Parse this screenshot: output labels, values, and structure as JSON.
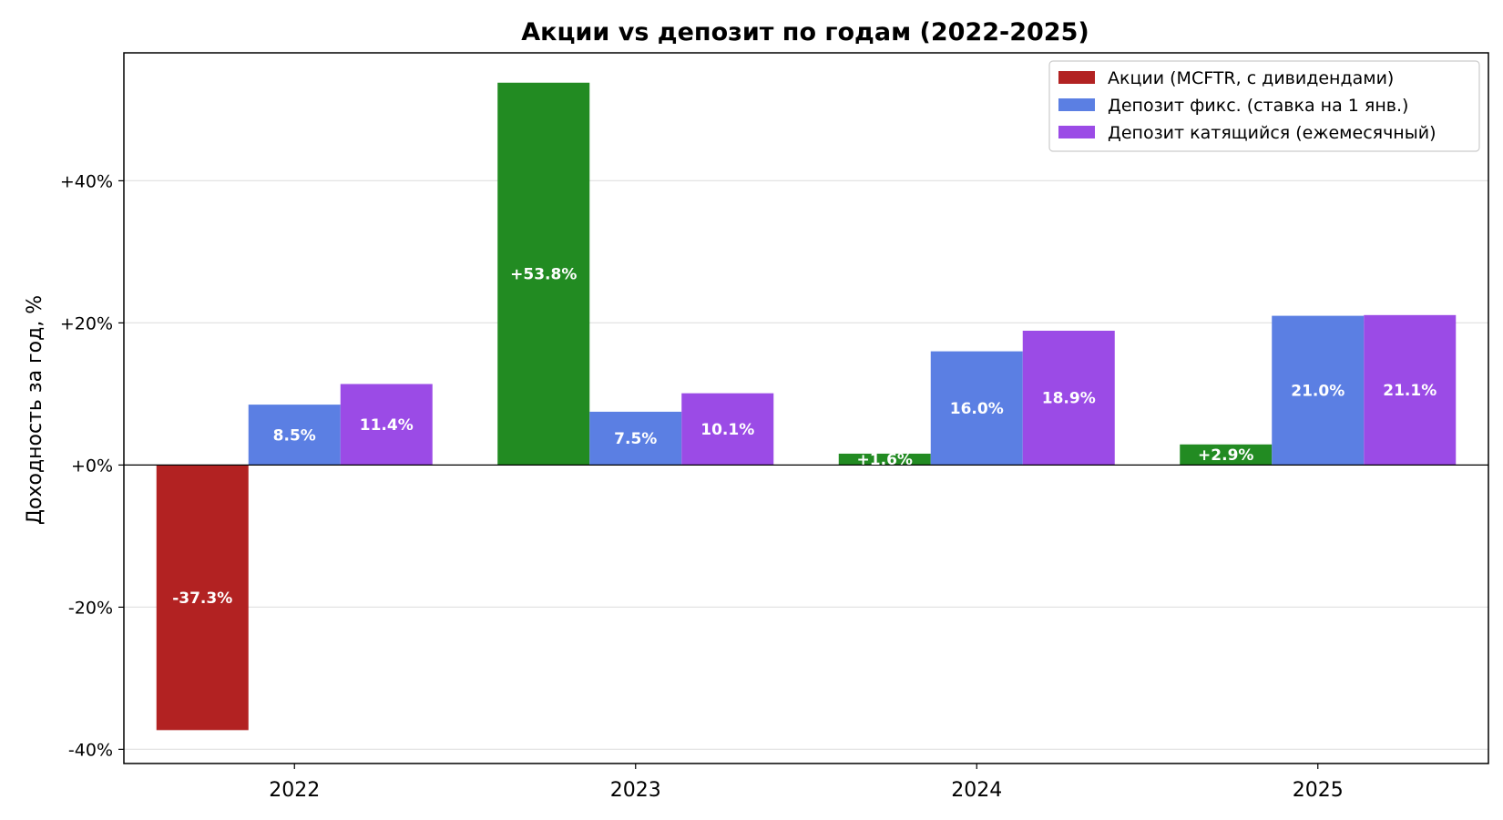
{
  "chart_data": {
    "type": "bar",
    "title": "Акции vs депозит по годам (2022-2025)",
    "xlabel": "",
    "ylabel": "Доходность за год, %",
    "categories": [
      "2022",
      "2023",
      "2024",
      "2025"
    ],
    "ylim": [
      -42,
      58
    ],
    "yticks": [
      -40,
      -20,
      0,
      20,
      40
    ],
    "ytick_labels": [
      "-40%",
      "-20%",
      "+0%",
      "+20%",
      "+40%"
    ],
    "grid": true,
    "legend_position": "top-right",
    "series": [
      {
        "name": "Акции (MCFTR, с дивидендами)",
        "values": [
          -37.3,
          53.8,
          1.6,
          2.9
        ],
        "labels": [
          "-37.3%",
          "+53.8%",
          "+1.6%",
          "+2.9%"
        ],
        "legend_color": "#b22222",
        "colors": [
          "#b22222",
          "#228b22",
          "#228b22",
          "#228b22"
        ]
      },
      {
        "name": "Депозит фикс. (ставка на 1 янв.)",
        "values": [
          8.5,
          7.5,
          16.0,
          21.0
        ],
        "labels": [
          "8.5%",
          "7.5%",
          "16.0%",
          "21.0%"
        ],
        "legend_color": "#5b7fe3",
        "colors": [
          "#5b7fe3",
          "#5b7fe3",
          "#5b7fe3",
          "#5b7fe3"
        ]
      },
      {
        "name": "Депозит катящийся (ежемесячный)",
        "values": [
          11.4,
          10.1,
          18.9,
          21.1
        ],
        "labels": [
          "11.4%",
          "10.1%",
          "18.9%",
          "21.1%"
        ],
        "legend_color": "#9b4be6",
        "colors": [
          "#9b4be6",
          "#9b4be6",
          "#9b4be6",
          "#9b4be6"
        ]
      }
    ]
  }
}
